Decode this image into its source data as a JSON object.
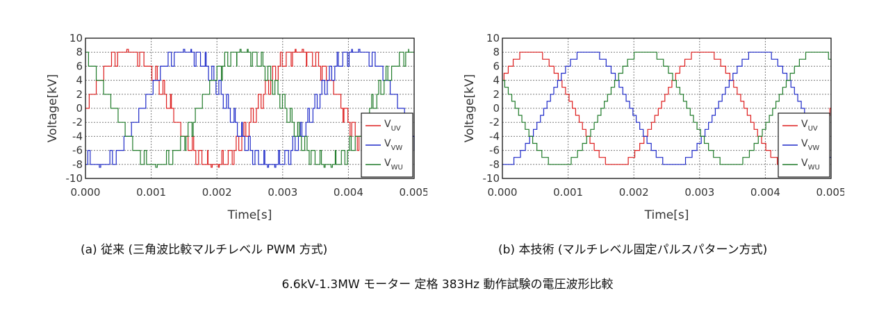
{
  "captions": {
    "a": "(a) 従来 (三角波比較マルチレベル PWM 方式)",
    "b": "(b) 本技術 (マルチレベル固定パルスパターン方式)",
    "main": "6.6kV-1.3MW モーター 定格 383Hz 動作試験の電圧波形比較"
  },
  "chart_data": [
    {
      "type": "line",
      "panel": "a",
      "title": "",
      "xlabel": "Time[s]",
      "ylabel": "Voltage[kV]",
      "xlim": [
        0.0,
        0.005
      ],
      "ylim": [
        -10,
        10
      ],
      "xticks": [
        "0.000",
        "0.001",
        "0.002",
        "0.003",
        "0.004",
        "0.005"
      ],
      "yticks": [
        "10",
        "8",
        "6",
        "4",
        "2",
        "0",
        "-2",
        "-4",
        "-6",
        "-8",
        "-10"
      ],
      "grid": true,
      "legend_position": "bottom-right",
      "waveform": {
        "frequency_hz": 383,
        "amplitude_kv": 8.2,
        "levels_kv": 2,
        "pwm_ripple": true
      },
      "series": [
        {
          "name": "UV",
          "color": "#dd1c1c",
          "phase_deg": 0
        },
        {
          "name": "VW",
          "color": "#1c28c8",
          "phase_deg": -120
        },
        {
          "name": "WU",
          "color": "#1e7a28",
          "phase_deg": 120
        }
      ]
    },
    {
      "type": "line",
      "panel": "b",
      "title": "",
      "xlabel": "Time[s]",
      "ylabel": "Voltage[kV]",
      "xlim": [
        0.0,
        0.005
      ],
      "ylim": [
        -10,
        10
      ],
      "xticks": [
        "0.000",
        "0.001",
        "0.002",
        "0.003",
        "0.004",
        "0.005"
      ],
      "yticks": [
        "10",
        "8",
        "6",
        "4",
        "2",
        "0",
        "-2",
        "-4",
        "-6",
        "-8",
        "-10"
      ],
      "grid": true,
      "legend_position": "bottom-right",
      "waveform": {
        "frequency_hz": 383,
        "amplitude_kv": 8.2,
        "levels_kv": 1,
        "pwm_ripple": false
      },
      "series": [
        {
          "name": "UV",
          "color": "#dd1c1c",
          "phase_deg": 30
        },
        {
          "name": "VW",
          "color": "#1c28c8",
          "phase_deg": -90
        },
        {
          "name": "WU",
          "color": "#1e7a28",
          "phase_deg": 150
        }
      ]
    }
  ]
}
